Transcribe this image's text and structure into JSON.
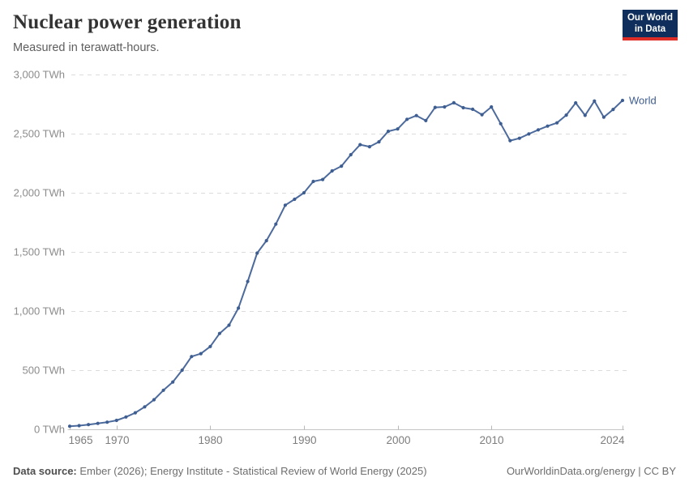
{
  "header": {
    "title": "Nuclear power generation",
    "subtitle": "Measured in terawatt-hours."
  },
  "logo": {
    "line1": "Our World",
    "line2": "in Data",
    "bg_color": "#0f2e5c",
    "accent_color": "#de2d26"
  },
  "footer": {
    "source_label": "Data source:",
    "source_text": " Ember (2026); Energy Institute - Statistical Review of World Energy (2025)",
    "rights_text": "OurWorldinData.org/energy | CC BY"
  },
  "chart_data": {
    "type": "line",
    "title": "Nuclear power generation",
    "subtitle": "Measured in terawatt-hours.",
    "unit": "TWh",
    "xlabel": "",
    "ylabel": "",
    "xlim": [
      1965,
      2024
    ],
    "ylim": [
      0,
      3000
    ],
    "grid": "horizontal-dashed",
    "legend_position": "end-of-line-label",
    "line_color": "#4c6a9c",
    "marker_color": "#3e5e92",
    "end_label": "World",
    "yticks": [
      {
        "value": 0,
        "label": "0 TWh"
      },
      {
        "value": 500,
        "label": "500 TWh"
      },
      {
        "value": 1000,
        "label": "1,000 TWh"
      },
      {
        "value": 1500,
        "label": "1,500 TWh"
      },
      {
        "value": 2000,
        "label": "2,000 TWh"
      },
      {
        "value": 2500,
        "label": "2,500 TWh"
      },
      {
        "value": 3000,
        "label": "3,000 TWh"
      }
    ],
    "xticks": [
      {
        "value": 1965,
        "label": "1965",
        "align": "start"
      },
      {
        "value": 1970,
        "label": "1970",
        "align": "middle"
      },
      {
        "value": 1980,
        "label": "1980",
        "align": "middle"
      },
      {
        "value": 1990,
        "label": "1990",
        "align": "middle"
      },
      {
        "value": 2000,
        "label": "2000",
        "align": "middle"
      },
      {
        "value": 2010,
        "label": "2010",
        "align": "middle"
      },
      {
        "value": 2024,
        "label": "2024",
        "align": "end"
      }
    ],
    "series": [
      {
        "name": "World",
        "x": [
          1965,
          1966,
          1967,
          1968,
          1969,
          1970,
          1971,
          1972,
          1973,
          1974,
          1975,
          1976,
          1977,
          1978,
          1979,
          1980,
          1981,
          1982,
          1983,
          1984,
          1985,
          1986,
          1987,
          1988,
          1989,
          1990,
          1991,
          1992,
          1993,
          1994,
          1995,
          1996,
          1997,
          1998,
          1999,
          2000,
          2001,
          2002,
          2003,
          2004,
          2005,
          2006,
          2007,
          2008,
          2009,
          2010,
          2011,
          2012,
          2013,
          2014,
          2015,
          2016,
          2017,
          2018,
          2019,
          2020,
          2021,
          2022,
          2023,
          2024
        ],
        "values": [
          26,
          31,
          40,
          50,
          60,
          75,
          104,
          140,
          190,
          250,
          330,
          400,
          500,
          615,
          640,
          700,
          810,
          880,
          1025,
          1250,
          1490,
          1595,
          1735,
          1895,
          1945,
          2000,
          2096,
          2112,
          2185,
          2225,
          2322,
          2407,
          2390,
          2431,
          2520,
          2540,
          2621,
          2653,
          2610,
          2722,
          2726,
          2761,
          2719,
          2706,
          2660,
          2726,
          2584,
          2441,
          2461,
          2497,
          2532,
          2564,
          2591,
          2657,
          2760,
          2655,
          2776,
          2639,
          2705,
          2781
        ]
      }
    ]
  }
}
